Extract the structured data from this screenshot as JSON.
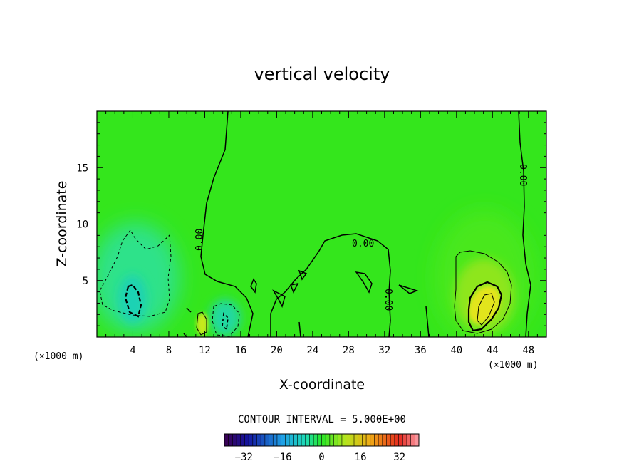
{
  "chart_data": {
    "type": "heatmap",
    "title": "vertical velocity",
    "xlabel": "X-coordinate",
    "ylabel": "Z-coordinate",
    "x_unit": "(×1000 m)",
    "y_unit": "(×1000 m)",
    "xlim": [
      0,
      50
    ],
    "ylim": [
      0,
      20
    ],
    "x_ticks": [
      4,
      8,
      12,
      16,
      20,
      24,
      28,
      32,
      36,
      40,
      44,
      48
    ],
    "y_ticks": [
      5,
      10,
      15
    ],
    "contour_interval_text": "CONTOUR INTERVAL = 5.000E+00",
    "contour_labels": [
      "0.00",
      "0.00",
      "0.00",
      "0.00"
    ],
    "colorbar": {
      "min": -40,
      "max": 40,
      "ticks": [
        -32,
        -16,
        0,
        16,
        32
      ],
      "tick_labels": [
        "−32",
        "−16",
        "0",
        "16",
        "32"
      ],
      "colormap": "rainbow"
    },
    "features": [
      {
        "kind": "downdraft",
        "x": 4,
        "z": 4,
        "peak": -10
      },
      {
        "kind": "downdraft",
        "x": 14,
        "z": 2,
        "peak": -6
      },
      {
        "kind": "updraft",
        "x": 12,
        "z": 1.3,
        "peak": 7
      },
      {
        "kind": "updraft",
        "x": 43,
        "z": 3,
        "peak": 15
      }
    ],
    "grid": false,
    "legend": "colorbar-bottom"
  }
}
